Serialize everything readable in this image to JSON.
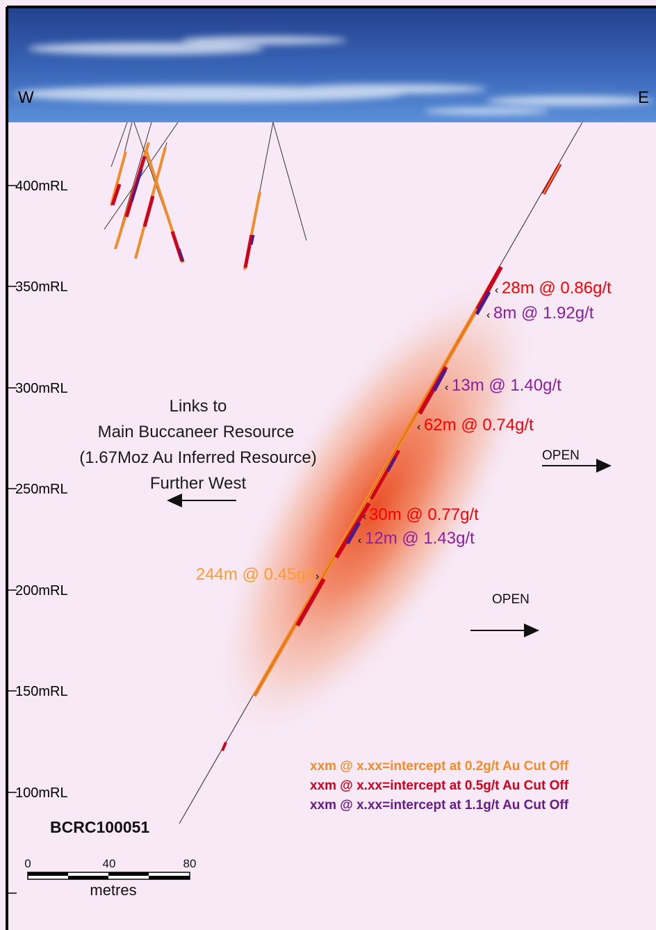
{
  "orientation": {
    "west": "W",
    "east": "E"
  },
  "elevation_labels": [
    "400mRL",
    "350mRL",
    "300mRL",
    "250mRL",
    "200mRL",
    "150mRL",
    "100mRL"
  ],
  "links_note": {
    "lines": [
      "Links to",
      "Main Buccaneer Resource",
      "(1.67Moz Au Inferred Resource)",
      "Further West"
    ]
  },
  "open_labels": [
    "OPEN",
    "OPEN"
  ],
  "intercepts": [
    {
      "text": "28m @ 0.86g/t",
      "marker": "‹",
      "color": "#ff0000"
    },
    {
      "text": "8m @ 1.92g/t",
      "marker": "‹",
      "color": "#8b1fa0"
    },
    {
      "text": "13m @ 1.40g/t",
      "marker": "‹",
      "color": "#8b1fa0"
    },
    {
      "text": "62m @ 0.74g/t",
      "marker": "‹",
      "color": "#ff0000"
    },
    {
      "text": "30m @ 0.77g/t",
      "marker": "‹",
      "color": "#ff0000"
    },
    {
      "text": "12m @ 1.43g/t",
      "marker": "‹",
      "color": "#8b1fa0"
    },
    {
      "text": "244m @ 0.45g/t",
      "marker": "›",
      "color": "#ff9a2e"
    }
  ],
  "hole_id": "BCRC100051",
  "legend": [
    {
      "text": "xxm @ x.xx=intercept at 0.2g/t Au Cut Off",
      "color": "#f28c28"
    },
    {
      "text": "xxm @ x.xx=intercept at 0.5g/t Au Cut Off",
      "color": "#d0021b"
    },
    {
      "text": "xxm @ x.xx=intercept at 1.1g/t Au Cut Off",
      "color": "#6a1b8a"
    }
  ],
  "scale_bar": {
    "ticks": [
      "0",
      "40",
      "80"
    ],
    "unit": "metres"
  },
  "colors": {
    "background": "#f7e9f6",
    "sky_top": "#2a4a9a",
    "sky_bottom": "#4e7fd0",
    "low_grade": "#f28c28",
    "mid_grade": "#d0021b",
    "high_grade": "#4b1a8c"
  }
}
